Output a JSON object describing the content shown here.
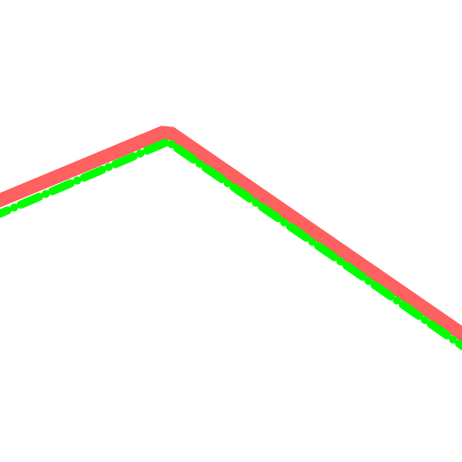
{
  "colors": {
    "background": "#ffffff",
    "solid_line": "#ff6060",
    "dashed_line": "#00ff00"
  },
  "lines": [
    {
      "style": "solid-thick"
    },
    {
      "style": "dash-dot"
    }
  ]
}
